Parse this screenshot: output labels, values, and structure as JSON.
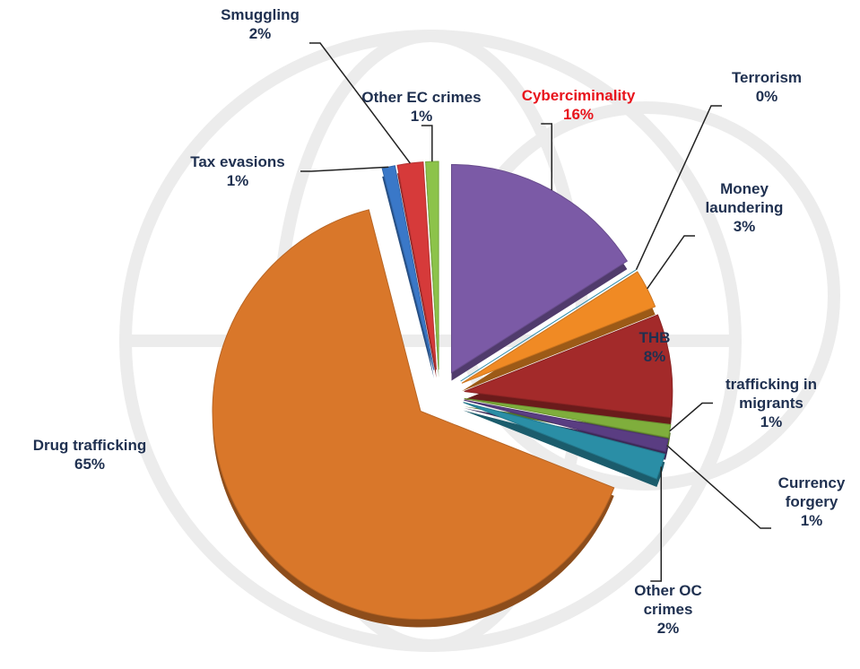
{
  "chart_data": {
    "type": "pie",
    "categories": [
      "Cyberciminality",
      "Terrorism",
      "Money laundering",
      "THB",
      "trafficking in migrants",
      "Currency forgery",
      "Other OC crimes",
      "Drug trafficking",
      "Tax evasions",
      "Smuggling",
      "Other EC crimes"
    ],
    "values": [
      16,
      0,
      3,
      8,
      1,
      1,
      2,
      65,
      1,
      2,
      1
    ],
    "value_labels": [
      "16%",
      "0%",
      "3%",
      "8%",
      "1%",
      "1%",
      "2%",
      "65%",
      "1%",
      "2%",
      "1%"
    ],
    "colors": [
      "#7b5aa6",
      "#3aa6c9",
      "#f08a24",
      "#a32a2a",
      "#7fae3c",
      "#5a3d82",
      "#2a8ea6",
      "#d9772a",
      "#3a78c8",
      "#d63a3a",
      "#8cc34a"
    ],
    "label_colors": [
      "#e8141c",
      "#1f3050",
      "#1f3050",
      "#1f3050",
      "#1f3050",
      "#1f3050",
      "#1f3050",
      "#1f3050",
      "#1f3050",
      "#1f3050",
      "#1f3050"
    ]
  }
}
